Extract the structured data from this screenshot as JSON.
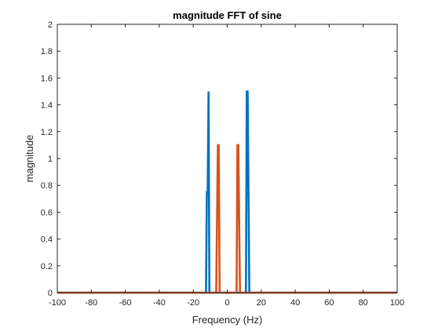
{
  "chart_data": {
    "type": "line",
    "title": "magnitude FFT of sine",
    "xlabel": "Frequency (Hz)",
    "ylabel": "magnitude",
    "xlim": [
      -100,
      100
    ],
    "ylim": [
      0,
      2
    ],
    "xticks": [
      "-100",
      "-80",
      "-60",
      "-40",
      "-20",
      "0",
      "20",
      "40",
      "60",
      "80",
      "100"
    ],
    "yticks": [
      "0",
      "0.2",
      "0.4",
      "0.6",
      "0.8",
      "1",
      "1.2",
      "1.4",
      "1.6",
      "1.8",
      "2"
    ],
    "grid": false,
    "legend": "none",
    "series": [
      {
        "color": "#0072BD",
        "x": [
          -100,
          -12.5,
          -12,
          -11.5,
          -11,
          -10.5,
          11,
          11.5,
          12,
          12.5,
          13,
          100
        ],
        "y": [
          0,
          0,
          0.75,
          0.75,
          1.5,
          0,
          0,
          1.5,
          1.5,
          0.75,
          0,
          0
        ]
      },
      {
        "color": "#D95319",
        "x": [
          -100,
          -6.5,
          -6,
          -5.5,
          -5,
          -4.5,
          5.5,
          6,
          6.5,
          7,
          7.5,
          100
        ],
        "y": [
          0,
          0,
          0.55,
          1.1,
          1.1,
          0,
          0,
          1.1,
          1.1,
          0.55,
          0,
          0
        ]
      }
    ]
  }
}
